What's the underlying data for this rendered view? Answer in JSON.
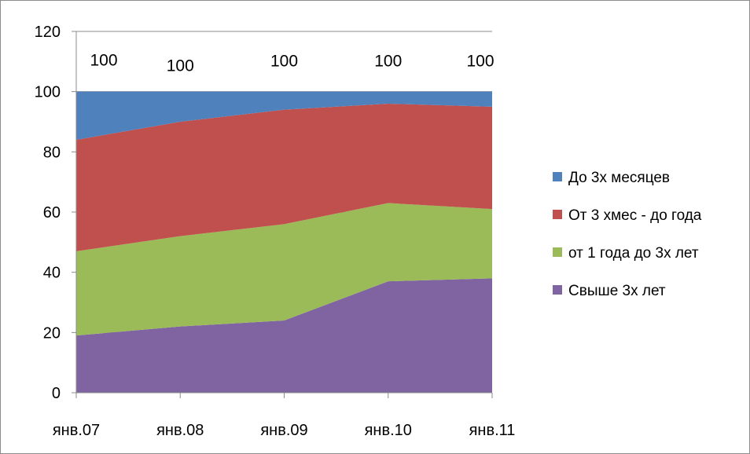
{
  "chart_data": {
    "type": "area",
    "stacked": true,
    "title": "",
    "xlabel": "",
    "ylabel": "",
    "categories": [
      "янв.07",
      "янв.08",
      "янв.09",
      "янв.10",
      "янв.11"
    ],
    "ylim": [
      0,
      120
    ],
    "yticks": [
      0,
      20,
      40,
      60,
      80,
      100,
      120
    ],
    "grid": true,
    "legend_position": "right",
    "series": [
      {
        "name": "Свыше 3х лет",
        "values": [
          19,
          22,
          24,
          37,
          38
        ],
        "color": "#8064A2"
      },
      {
        "name": "от 1 года до 3х лет",
        "values": [
          28,
          30,
          32,
          26,
          23
        ],
        "color": "#9BBB59"
      },
      {
        "name": "От 3 хмес - до года",
        "values": [
          37,
          38,
          38,
          33,
          34
        ],
        "color": "#C0504D"
      },
      {
        "name": "До 3х месяцев",
        "values": [
          16,
          10,
          6,
          4,
          5
        ],
        "color": "#4F81BD"
      }
    ],
    "total_labels": [
      "100",
      "100",
      "100",
      "100",
      "100"
    ],
    "legend_order": [
      "До 3х месяцев",
      "От 3 хмес - до года",
      "от 1 года до 3х лет",
      "Свыше 3х лет"
    ]
  }
}
